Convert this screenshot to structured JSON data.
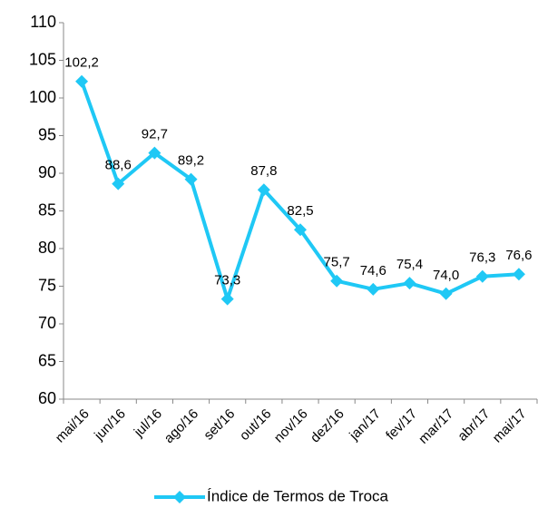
{
  "chart_data": {
    "type": "line",
    "categories": [
      "mai/16",
      "jun/16",
      "jul/16",
      "ago/16",
      "set/16",
      "out/16",
      "nov/16",
      "dez/16",
      "jan/17",
      "fev/17",
      "mar/17",
      "abr/17",
      "mai/17"
    ],
    "series": [
      {
        "name": "Índice de Termos de Troca",
        "color": "#1fc8f5",
        "values": [
          102.2,
          88.6,
          92.7,
          89.2,
          73.3,
          87.8,
          82.5,
          75.7,
          74.6,
          75.4,
          74.0,
          76.3,
          76.6
        ],
        "value_labels": [
          "102,2",
          "88,6",
          "92,7",
          "89,2",
          "73,3",
          "87,8",
          "82,5",
          "75,7",
          "74,6",
          "75,4",
          "74,0",
          "76,3",
          "76,6"
        ]
      }
    ],
    "ylim": [
      60,
      110
    ],
    "yticks": [
      60,
      65,
      70,
      75,
      80,
      85,
      90,
      95,
      100,
      105,
      110
    ],
    "grid": false,
    "legend": "bottom"
  }
}
